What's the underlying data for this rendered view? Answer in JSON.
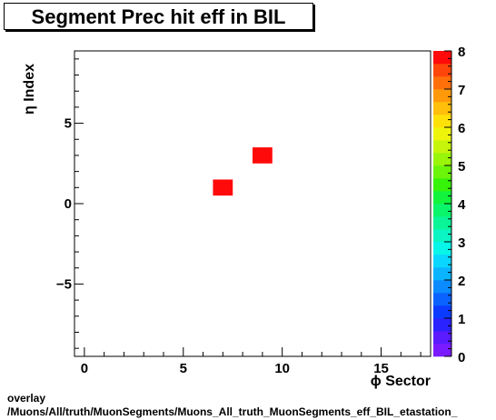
{
  "chart_data": {
    "type": "heatmap",
    "title": "Segment Prec hit eff in BIL",
    "xlabel": "ϕ Sector",
    "ylabel": "η Index",
    "xlim": [
      -0.5,
      17.5
    ],
    "ylim": [
      -9.5,
      9.5
    ],
    "x_ticks": [
      0,
      5,
      10,
      15
    ],
    "y_ticks": [
      -5,
      0,
      5
    ],
    "x_tick_labels": [
      "0",
      "5",
      "10",
      "15"
    ],
    "y_tick_labels": [
      "−5",
      "0",
      "5"
    ],
    "zlim": [
      0,
      8
    ],
    "z_ticks": [
      0,
      1,
      2,
      3,
      4,
      5,
      6,
      7,
      8
    ],
    "z_tick_labels": [
      "0",
      "1",
      "2",
      "3",
      "4",
      "5",
      "6",
      "7",
      "8"
    ],
    "cells": [
      {
        "x": 7,
        "y": 1,
        "value": 8
      },
      {
        "x": 9,
        "y": 3,
        "value": 8
      }
    ]
  },
  "footer": {
    "line1": "overlay",
    "line2": "/Muons/All/truth/MuonSegments/Muons_All_truth_MuonSegments_eff_BIL_etastation_"
  }
}
